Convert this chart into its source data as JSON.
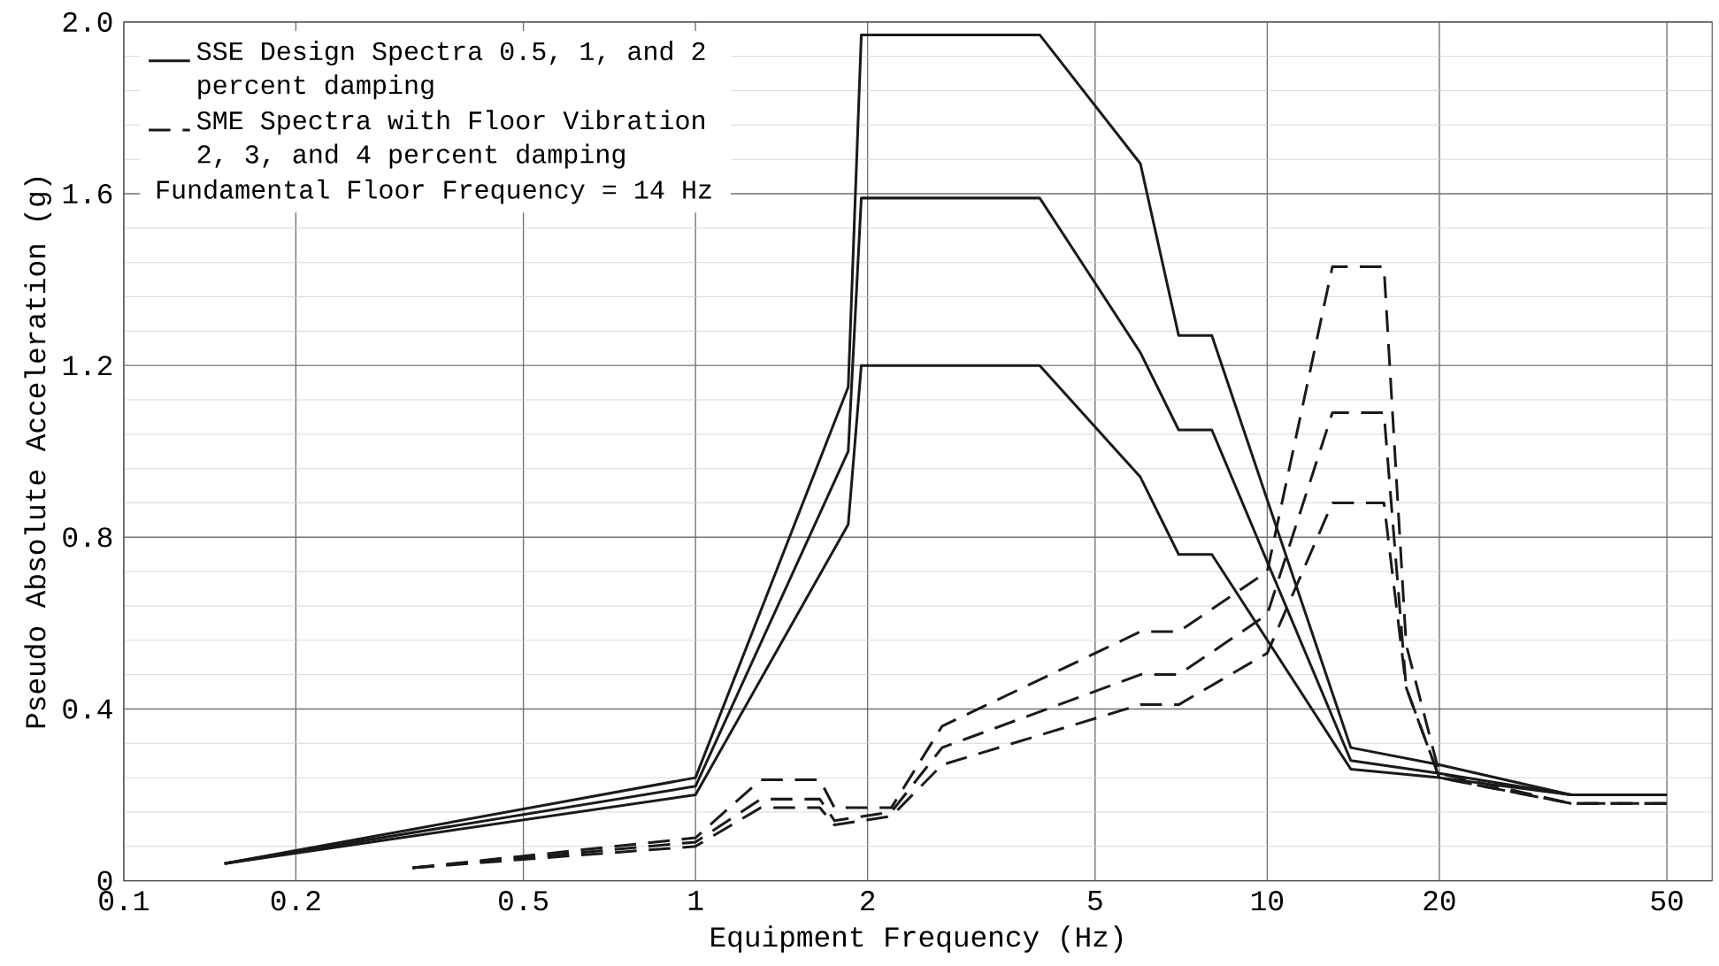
{
  "chart_data": {
    "type": "line",
    "xlabel": "Equipment Frequency (Hz)",
    "ylabel": "Pseudo Absolute Acceleration (g)",
    "log": "x",
    "xlim": [
      0.1,
      60
    ],
    "ylim": [
      0,
      2.0
    ],
    "xticks": [
      0.1,
      0.2,
      0.5,
      1,
      2,
      5,
      10,
      20,
      50
    ],
    "yticks": [
      {
        "value": 0,
        "label": "0"
      },
      0.4,
      0.8,
      1.2,
      1.6,
      {
        "value": 2.0,
        "label": "2.0"
      }
    ],
    "grid": true,
    "legend": "top left",
    "annotations": [
      "Fundamental Floor Frequency = 14 Hz"
    ],
    "series": [
      {
        "name": "SSE Design Spectra 0.5, 1, and 2 percent damping",
        "color": "#1a1a1a",
        "line_style": "solid",
        "x": [
          0.15,
          1,
          1.85,
          1.95,
          4,
          6,
          7,
          8,
          14,
          20,
          34,
          50
        ],
        "values": [
          0.04,
          0.24,
          1.15,
          1.97,
          1.97,
          1.67,
          1.27,
          1.27,
          0.31,
          0.27,
          0.2,
          0.2
        ]
      },
      {
        "color": "#1a1a1a",
        "line_style": "solid",
        "x": [
          0.15,
          1,
          1.85,
          1.95,
          4,
          6,
          7,
          8,
          14,
          20,
          34,
          50
        ],
        "values": [
          0.04,
          0.22,
          1.0,
          1.59,
          1.59,
          1.23,
          1.05,
          1.05,
          0.28,
          0.25,
          0.2,
          0.2
        ]
      },
      {
        "color": "#1a1a1a",
        "line_style": "solid",
        "x": [
          0.15,
          1,
          1.85,
          1.95,
          4,
          6,
          7,
          8,
          14,
          20,
          34,
          50
        ],
        "values": [
          0.04,
          0.2,
          0.83,
          1.2,
          1.2,
          0.94,
          0.76,
          0.76,
          0.26,
          0.24,
          0.2,
          0.2
        ]
      },
      {
        "name": "SME Spectra with Floor Vibration 2, 3, and 4 percent damping",
        "color": "#1a1a1a",
        "line_style": "dashed",
        "x": [
          0.32,
          1,
          1.3,
          1.65,
          1.75,
          2.2,
          2.7,
          6,
          7,
          10,
          13,
          16,
          17.5,
          20,
          34,
          50
        ],
        "values": [
          0.03,
          0.1,
          0.235,
          0.235,
          0.17,
          0.17,
          0.36,
          0.58,
          0.58,
          0.72,
          1.43,
          1.43,
          0.55,
          0.25,
          0.18,
          0.18
        ]
      },
      {
        "color": "#1a1a1a",
        "line_style": "dashed",
        "x": [
          0.32,
          1,
          1.3,
          1.65,
          1.75,
          2.2,
          2.7,
          6,
          7,
          10,
          13,
          16,
          17.5,
          20,
          34,
          50
        ],
        "values": [
          0.03,
          0.09,
          0.19,
          0.19,
          0.14,
          0.16,
          0.31,
          0.48,
          0.48,
          0.62,
          1.09,
          1.09,
          0.45,
          0.24,
          0.18,
          0.18
        ]
      },
      {
        "color": "#1a1a1a",
        "line_style": "dashed",
        "x": [
          0.32,
          1,
          1.3,
          1.65,
          1.75,
          2.2,
          2.7,
          6,
          7,
          10,
          13,
          16,
          17.5,
          20,
          34,
          50
        ],
        "values": [
          0.03,
          0.08,
          0.17,
          0.17,
          0.13,
          0.15,
          0.27,
          0.41,
          0.41,
          0.53,
          0.88,
          0.88,
          0.45,
          0.24,
          0.18,
          0.18
        ]
      }
    ]
  }
}
